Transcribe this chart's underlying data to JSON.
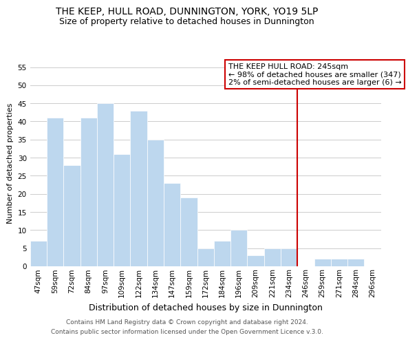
{
  "title": "THE KEEP, HULL ROAD, DUNNINGTON, YORK, YO19 5LP",
  "subtitle": "Size of property relative to detached houses in Dunnington",
  "xlabel": "Distribution of detached houses by size in Dunnington",
  "ylabel": "Number of detached properties",
  "footer_line1": "Contains HM Land Registry data © Crown copyright and database right 2024.",
  "footer_line2": "Contains public sector information licensed under the Open Government Licence v.3.0.",
  "bin_labels": [
    "47sqm",
    "59sqm",
    "72sqm",
    "84sqm",
    "97sqm",
    "109sqm",
    "122sqm",
    "134sqm",
    "147sqm",
    "159sqm",
    "172sqm",
    "184sqm",
    "196sqm",
    "209sqm",
    "221sqm",
    "234sqm",
    "246sqm",
    "259sqm",
    "271sqm",
    "284sqm",
    "296sqm"
  ],
  "bar_heights": [
    7,
    41,
    28,
    41,
    45,
    31,
    43,
    35,
    23,
    19,
    5,
    7,
    10,
    3,
    5,
    5,
    0,
    2,
    2,
    2,
    0
  ],
  "bar_color": "#bdd7ee",
  "bar_edge_color": "#ffffff",
  "grid_color": "#cccccc",
  "vline_x_index": 16,
  "vline_color": "#cc0000",
  "annotation_title": "THE KEEP HULL ROAD: 245sqm",
  "annotation_line1": "← 98% of detached houses are smaller (347)",
  "annotation_line2": "2% of semi-detached houses are larger (6) →",
  "annotation_box_color": "#ffffff",
  "annotation_box_edge": "#cc0000",
  "ylim": [
    0,
    57
  ],
  "yticks": [
    0,
    5,
    10,
    15,
    20,
    25,
    30,
    35,
    40,
    45,
    50,
    55
  ],
  "background_color": "#ffffff",
  "title_fontsize": 10,
  "subtitle_fontsize": 9,
  "ylabel_fontsize": 8,
  "xlabel_fontsize": 9,
  "tick_fontsize": 7.5,
  "footer_fontsize": 6.5,
  "annot_fontsize": 8
}
